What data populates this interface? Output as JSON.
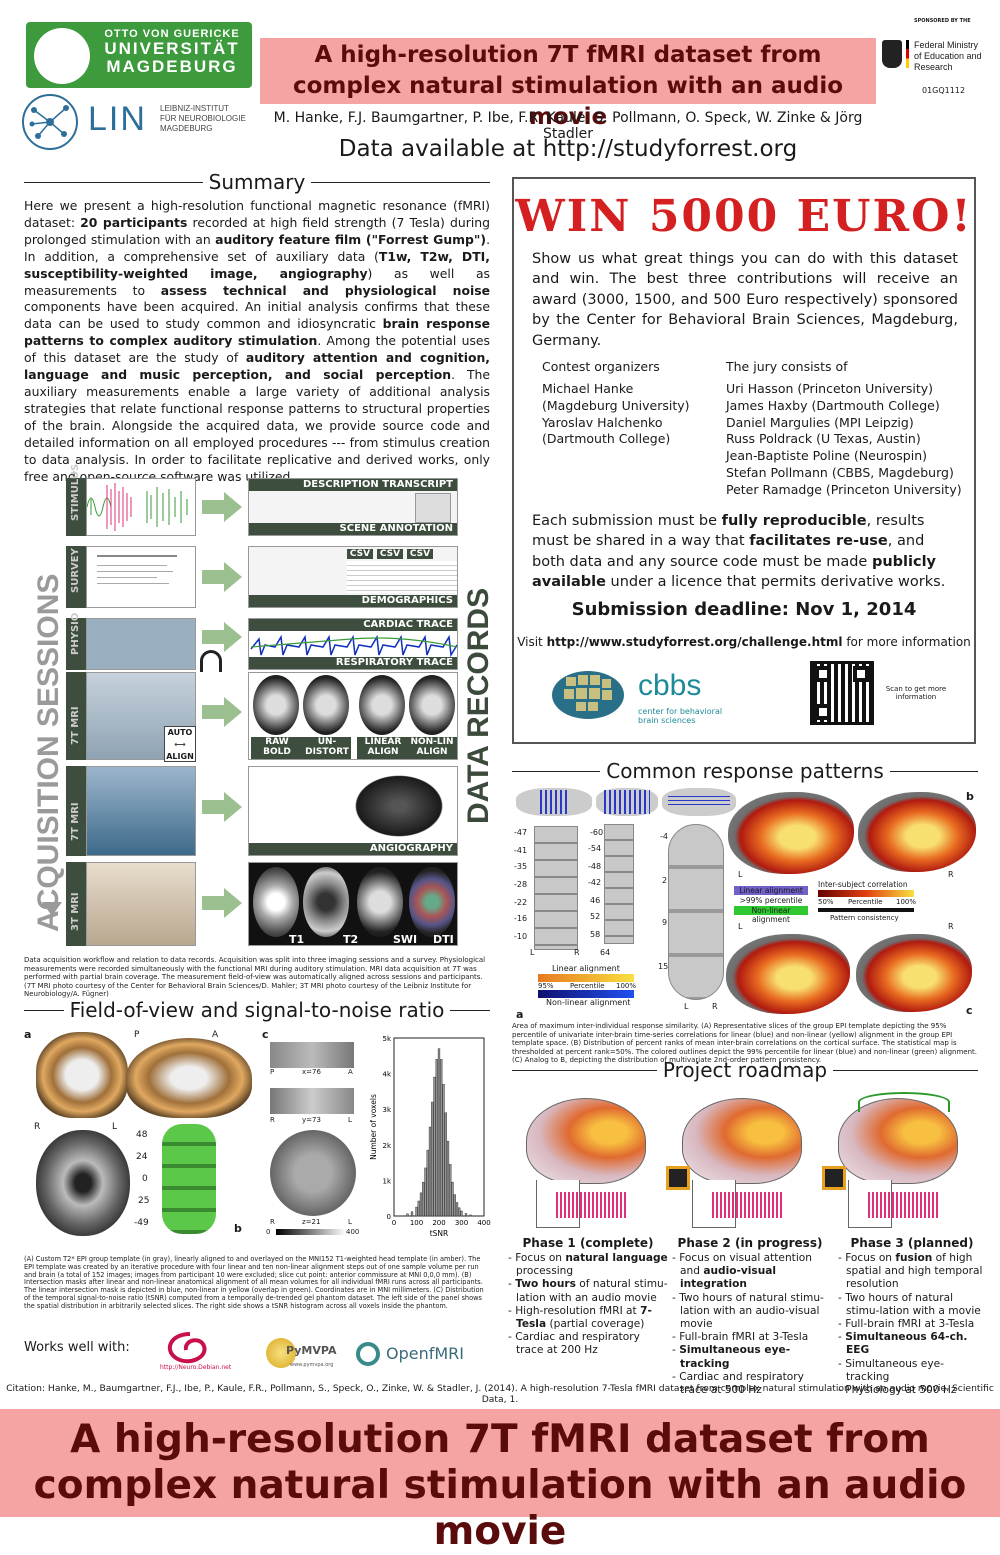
{
  "header": {
    "uni_line1": "OTTO VON GUERICKE",
    "uni_line2": "UNIVERSITÄT",
    "uni_line3": "MAGDEBURG",
    "lin_word": "LIN",
    "lin_sub": "LEIBNIZ-INSTITUT\nFÜR NEUROBIOLOGIE\nMAGDEBURG",
    "title": "A high-resolution 7T fMRI dataset from complex natural stimulation with an audio movie",
    "authors": "M. Hanke, F.J. Baumgartner, P. Ibe, F.R. Kaule, S. Pollmann, O. Speck, W. Zinke & Jörg Stadler",
    "data_available": "Data available at http://studyforrest.org",
    "sponsor_label": "SPONSORED BY THE",
    "sponsor_name": "Federal Ministry of Education and Research",
    "grant_code": "01GQ1112"
  },
  "summary": {
    "heading": "Summary",
    "p1": "Here we present a high-resolution functional magnetic resonance (fMRI) dataset: ",
    "b1": "20 participants",
    "p2": " recorded at high field strength (7 Tesla) during prolonged stimulation with an ",
    "b2": "auditory feature film (\"Forrest Gump\")",
    "p3": ". In addition, a comprehensive set of auxiliary data (",
    "b3": "T1w, T2w, DTI, susceptibility-weighted image, angiography",
    "p4": ") as well as measurements to ",
    "b4": "assess technical and physiological noise",
    "p5": " components have been acquired. An initial analysis confirms that these data can be used to study common and idiosyncratic ",
    "b5": "brain response patterns to complex auditory stimulation",
    "p6": ". Among the potential uses of this dataset are the study of ",
    "b6": "auditory attention and cognition, language and music perception, and social perception",
    "p7": ".  The auxiliary measurements enable a large variety of additional analysis strategies that relate functional response patterns to structural properties of the brain. Alongside the acquired data, we provide source code and detailed information on all employed procedures --- from stimulus creation to data analysis. In order to facilitate replicative and derived works, only free and open-source software was utilized."
  },
  "acquisition": {
    "vertical_left": "ACQUISITION SESSIONS",
    "vertical_right": "DATA RECORDS",
    "row_labels": [
      "STIMULUS",
      "SURVEY",
      "PHYSIO",
      "7T MRI",
      "7T MRI",
      "3T MRI"
    ],
    "records": {
      "description_transcript": "DESCRIPTION TRANSCRIPT",
      "scene_annotation": "SCENE ANNOTATION",
      "csv1": "CSV",
      "csv2": "CSV",
      "csv3": "CSV",
      "demographics": "DEMOGRAPHICS",
      "cardiac": "CARDIAC TRACE",
      "respiratory": "RESPIRATORY TRACE",
      "raw_bold": "RAW\nBOLD",
      "undistort": "UN-\nDISTORT",
      "linear_align": "LINEAR\nALIGN",
      "nonlin_align": "NON-LIN\nALIGN",
      "angiography": "ANGIOGRAPHY",
      "t1": "T1",
      "t2": "T2",
      "swi": "SWI",
      "dti": "DTI"
    },
    "auto_label": "AUTO",
    "align_label": "ALIGN",
    "caption": "Data acquisition workflow and relation to data records. Acquisition was split into three imaging sessions and a survey. Physiological measurements were recorded simultaneously with the functional MRI during auditory stimulation. MRI data acquisition at 7T was performed with partial brain coverage. The measurement field-of-view was automatically aligned across sessions and participants. (7T MRI photo courtesy of the Center for Behavioral Brain Sciences/D. Mahler; 3T MRI photo courtesy of the Leibniz Institute for Neurobiology/A. Fügner)"
  },
  "win": {
    "title": "WIN 5000 EURO!",
    "intro": "Show us what great things you can do with this dataset and win. The best three contributions will receive an award (3000, 1500, and 500 Euro respectively) sponsored by the Center for Behavioral Brain Sciences, Magdeburg, Germany.",
    "organizers_heading": "Contest organizers",
    "organizers": [
      "Michael Hanke",
      "(Magdeburg University)",
      "Yaroslav Halchenko",
      "(Dartmouth College)"
    ],
    "jury_heading": "The jury consists of",
    "jury": [
      "Uri Hasson (Princeton University)",
      "James Haxby (Dartmouth College)",
      "Daniel Margulies (MPI Leipzig)",
      "Russ Poldrack (U Texas, Austin)",
      "Jean-Baptiste Poline (Neurospin)",
      "Stefan Pollmann (CBBS, Magdeburg)",
      "Peter Ramadge (Princeton University)"
    ],
    "s1": "Each submission must be ",
    "sb1": "fully reproducible",
    "s2": ", results must be shared in a way that ",
    "sb2": "facilitates re-use",
    "s3": ", and both data and any source code must be made ",
    "sb3": "publicly available",
    "s4": " under a licence that permits derivative works.",
    "deadline": "Submission deadline: Nov 1, 2014",
    "visit_pre": "Visit ",
    "visit_url": "http://www.studyforrest.org/challenge.html",
    "visit_post": " for more information",
    "cbbs_word": "cbbs",
    "cbbs_sub": "center for behavioral\nbrain sciences",
    "qr_text": "Scan to get more information"
  },
  "crp": {
    "heading": "Common response patterns",
    "col1_numbers": [
      "-47",
      "-41",
      "-35",
      "-28",
      "-22",
      "-16",
      "-10"
    ],
    "col2_numbers": [
      "-60",
      "-54",
      "-48",
      "-42",
      "46",
      "52",
      "58",
      "64"
    ],
    "col3_numbers": [
      "-4",
      "2",
      "9",
      "15"
    ],
    "lr_l": "L",
    "lr_r": "R",
    "linear_alignment": "Linear alignment",
    "scale_95": "95%",
    "scale_percentile": "Percentile",
    "scale_100": "100%",
    "non_linear_alignment": "Non-linear alignment",
    "legend_linear": "Linear alignment",
    "legend_99": ">99% percentile",
    "legend_nonlinear": "Non-linear alignment",
    "isc_label": "Inter-subject correlation",
    "isc_50": "50%",
    "isc_percentile": "Percentile",
    "isc_100": "100%",
    "pattern_consistency": "Pattern consistency",
    "letter_a": "a",
    "letter_b": "b",
    "letter_c": "c",
    "caption": "Area of maximum inter-individual response similarity. (A) Representative slices of the group EPI template depicting the 95% percentile of univariate inter-brain time-series correlations for linear (blue) and non-linear (yellow) alignment in the group EPI template space. (B) Distribution of percent ranks of mean inter-brain correlations on the cortical surface. The statistical map is thresholded at percent rank=50%. The colored outlines depict the 99% percentile for linear (blue) and non-linear (green) alignment. (C) Analog to B, depicting the distribution of multivariate 2nd-order pattern consistency."
  },
  "fov": {
    "heading": "Field-of-view and signal-to-noise ratio",
    "letter_a": "a",
    "letter_b": "b",
    "letter_c": "c",
    "p": "P",
    "a": "A",
    "r": "R",
    "l": "L",
    "slice_numbers": [
      "48",
      "24",
      "0",
      "25",
      "-49"
    ],
    "x_label": "x=76",
    "y_label": "y=73",
    "z_label": "z=21",
    "cbar_0": "0",
    "cbar_400": "400",
    "caption": "(A) Custom T2* EPI group template (in gray), linearly aligned to and overlayed on the MNI152 T1-weighted head template (in amber). The EPI template was created by an iterative procedure with four linear and ten non-linear alignment steps out of one sample volume per run and brain (a total of 152 images; images from participant 10 were  excluded; slice cut point: anterior commissure at MNI 0,0,0 mm). (B) Intersection masks after linear and non-linear  anatomical alignment of all mean volumes for all individual fMRI runs across  all participants. The linear intersection mask is depicted in blue,  non-linear in yellow (overlap in green). Coordinates are in MNI millimeters. (C) Distribution of the temporal signal-to-noise ratio (tSNR) computed from a temporally de-trended gel phantom dataset. The left side of the panel shows the spatial distribution in arbitrarily selected slices. The right side shows a tSNR histogram across all voxels inside the phantom."
  },
  "chart_data": {
    "type": "bar",
    "title": "",
    "xlabel": "tSNR",
    "ylabel": "Number of voxels",
    "xlim": [
      0,
      400
    ],
    "ylim": [
      0,
      5000
    ],
    "x_ticks": [
      "0",
      "100",
      "200",
      "300",
      "400"
    ],
    "y_ticks": [
      "0",
      "1k",
      "2k",
      "3k",
      "4k",
      "5k"
    ],
    "categories": [
      60,
      80,
      100,
      110,
      120,
      130,
      140,
      150,
      160,
      170,
      180,
      190,
      200,
      210,
      220,
      230,
      240,
      250,
      260,
      270,
      280,
      290,
      300,
      320,
      340
    ],
    "values": [
      60,
      120,
      250,
      420,
      650,
      950,
      1350,
      1850,
      2500,
      3200,
      3900,
      4400,
      4700,
      4400,
      3700,
      2900,
      2100,
      1450,
      950,
      600,
      380,
      230,
      140,
      70,
      30
    ]
  },
  "roadmap": {
    "heading": "Project roadmap",
    "phases": [
      {
        "title": "Phase 1 (complete)",
        "i1a": "Focus on ",
        "i1b": "natural language",
        "i1c": " processing",
        "i2a": "",
        "i2b": "Two hours",
        "i2c": " of natural stimu-lation with an audio movie",
        "i3a": "High-resolution fMRI at ",
        "i3b": "7-Tesla",
        "i3c": " (partial coverage)",
        "i4a": "Cardiac and respiratory trace at 200 Hz",
        "i4b": "",
        "i4c": ""
      },
      {
        "title": "Phase 2 (in progress)",
        "i1a": "Focus on visual attention and ",
        "i1b": "audio-visual integration",
        "i1c": "",
        "i2a": "Two hours of natural stimu-lation with an audio-visual movie",
        "i2b": "",
        "i2c": "",
        "i3a": "Full-brain fMRI at 3-Tesla",
        "i3b": "",
        "i3c": "",
        "i4a": "",
        "i4b": "Simultaneous eye-tracking",
        "i4c": "",
        "i5a": "Cardiac and respiratory trace at 500 Hz"
      },
      {
        "title": "Phase 3 (planned)",
        "i1a": "Focus on ",
        "i1b": "fusion",
        "i1c": " of high spatial and high temporal resolution",
        "i2a": "Two hours of natural stimu-lation with a movie",
        "i2b": "",
        "i2c": "",
        "i3a": "Full-brain fMRI at 3-Tesla",
        "i3b": "",
        "i3c": "",
        "i4a": "",
        "i4b": "Simultaneous 64-ch. EEG",
        "i4c": "",
        "i5a": "Simultaneous eye-tracking",
        "i6a": "Physiology at 500 Hz"
      }
    ]
  },
  "footer": {
    "works_well": "Works well with:",
    "neurodebian": "http://Neuro.Debian.net",
    "pymvpa": "PyMVPA",
    "pymvpa_url": "www.pymvpa.org",
    "openfmri": "OpenfMRI",
    "citation": "Citation: Hanke, M., Baumgartner, F.J., Ibe, P., Kaule, F.R., Pollmann, S., Speck, O., Zinke, W. & Stadler, J. (2014). A high-resolution 7-Tesla fMRI dataset from complex natural stimulation with an audio movie. Scientific Data, 1.",
    "big_title": "A high-resolution 7T fMRI dataset from complex natural stimulation with an audio movie"
  },
  "colors": {
    "title_band": "#f5a3a3",
    "title_text": "#5a0c0c",
    "uni_green": "#3d9a3d",
    "win_red": "#d42020",
    "cbbs_teal": "#1d8a9a"
  }
}
